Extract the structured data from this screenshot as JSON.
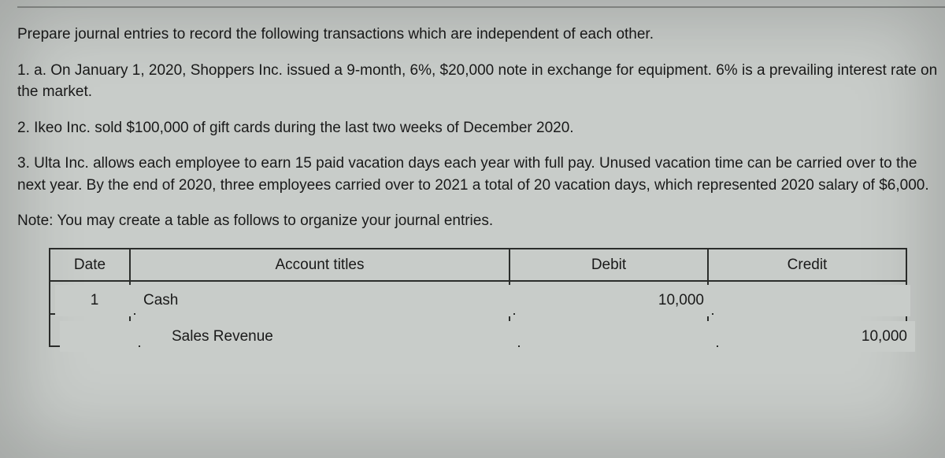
{
  "intro": "Prepare journal entries to record the following transactions which are independent of each other.",
  "items": [
    "1. a. On January 1, 2020, Shoppers Inc. issued a 9-month, 6%, $20,000 note in exchange for equipment. 6% is a prevailing interest rate on the market.",
    "2. Ikeo Inc. sold $100,000 of gift cards during the last two weeks of December 2020.",
    "3. Ulta Inc. allows each employee to earn 15 paid vacation days each year with full pay. Unused vacation time can be carried over to the next year. By the end of 2020, three employees carried over to 2021 a total of 20 vacation days, which represented 2020 salary of $6,000."
  ],
  "note": "Note: You may create a table as follows to organize your journal entries.",
  "table": {
    "headers": {
      "date": "Date",
      "account": "Account titles",
      "debit": "Debit",
      "credit": "Credit"
    },
    "rows": [
      {
        "date": "1",
        "account": "Cash",
        "debit": "10,000",
        "credit": ""
      },
      {
        "date": "",
        "account": "Sales Revenue",
        "debit": "",
        "credit": "10,000"
      }
    ]
  }
}
